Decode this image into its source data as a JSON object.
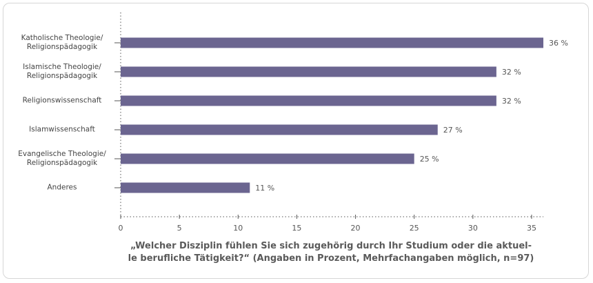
{
  "chart_data": {
    "type": "bar",
    "orientation": "horizontal",
    "title": "„Welcher Disziplin fühlen Sie sich zugehörig durch Ihr Studium oder die aktuel-\nle berufliche Tätigkeit?“ (Angaben in Prozent, Mehrfachangaben möglich, n=97)",
    "categories": [
      "Katholische Theologie/\nReligionspädagogik",
      "Islamische Theologie/\nReligionspädagogik",
      "Religionswissenschaft",
      "Islamwissenschaft",
      "Evangelische Theologie/\nReligionspädagogik",
      "Anderes"
    ],
    "values": [
      36,
      32,
      32,
      27,
      25,
      11
    ],
    "value_labels": [
      "36 %",
      "32 %",
      "32 %",
      "27 %",
      "25 %",
      "11 %"
    ],
    "color": "#6b6590",
    "xlim": [
      0,
      36
    ],
    "xticks": [
      0,
      5,
      10,
      15,
      20,
      25,
      30,
      35
    ],
    "grid": false
  }
}
